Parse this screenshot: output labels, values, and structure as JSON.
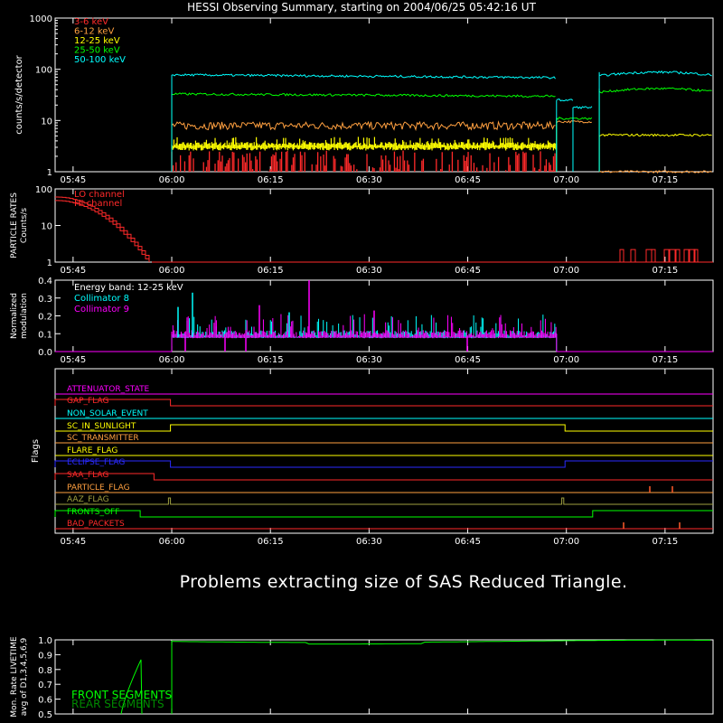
{
  "title": "HESSI Observing Summary, starting on 2004/06/25 05:42:16 UT",
  "message": "Problems extracting size of SAS Reduced Triangle.",
  "time_ticks": [
    "05:45",
    "06:00",
    "06:15",
    "06:30",
    "06:45",
    "07:00",
    "07:15"
  ],
  "time_tick_minutes": [
    345,
    360,
    375,
    390,
    405,
    420,
    435
  ],
  "time_range_minutes": [
    342.27,
    442.3
  ],
  "chart_data": [
    {
      "type": "line",
      "ylabel": "counts/s/detector",
      "yscale": "log",
      "ylim": [
        1,
        1000
      ],
      "yticks": [
        "1",
        "10",
        "100",
        "1000"
      ],
      "series": [
        {
          "name": "3-6 keV",
          "color": "#ff2a2a",
          "segments": [
            {
              "from": 360,
              "to": 418.5,
              "level": 1.7,
              "spiky": true
            }
          ]
        },
        {
          "name": "6-12 keV",
          "color": "#ffa040",
          "segments": [
            {
              "from": 360,
              "to": 418.5,
              "level": 8,
              "spiky": true
            },
            {
              "from": 418.5,
              "to": 424,
              "level": 9.5,
              "spiky": false
            },
            {
              "from": 425,
              "to": 442.3,
              "level": 1,
              "spiky": false
            }
          ]
        },
        {
          "name": "12-25 keV",
          "color": "#ffff00",
          "segments": [
            {
              "from": 360,
              "to": 418.5,
              "level": 3.2,
              "spiky": true
            },
            {
              "from": 425,
              "to": 442.3,
              "level": 5.2,
              "spiky": false
            }
          ]
        },
        {
          "name": "25-50 keV",
          "color": "#00ff00",
          "segments": [
            {
              "from": 360,
              "to": 418.5,
              "level": 33,
              "spiky": false
            },
            {
              "from": 418.5,
              "to": 424,
              "level": 11,
              "spiky": false
            },
            {
              "from": 425,
              "to": 442.3,
              "level": 42,
              "spiky": false
            }
          ]
        },
        {
          "name": "50-100 keV",
          "color": "#00ffff",
          "segments": [
            {
              "from": 360,
              "to": 418.5,
              "level": 78,
              "spiky": false
            },
            {
              "from": 418.5,
              "to": 421,
              "level": 25,
              "spiky": false
            },
            {
              "from": 421,
              "to": 424,
              "level": 18,
              "spiky": false
            },
            {
              "from": 425,
              "to": 442.3,
              "level": 88,
              "spiky": false
            }
          ]
        }
      ]
    },
    {
      "type": "line",
      "ylabel": "PARTICLE RATES Counts/s",
      "yscale": "log",
      "ylim": [
        1,
        100
      ],
      "yticks": [
        "1",
        "10",
        "100"
      ],
      "series": [
        {
          "name": "LO channel",
          "color": "#ff2a2a"
        },
        {
          "name": "HI channel",
          "color": "#ff2a2a"
        }
      ]
    },
    {
      "type": "line",
      "ylabel": "Normalized modulation",
      "ylim": [
        0,
        0.4
      ],
      "yticks": [
        "0.0",
        "0.1",
        "0.2",
        "0.3",
        "0.4"
      ],
      "annotation": "Energy band: 12-25 keV",
      "series": [
        {
          "name": "Collimator 8",
          "color": "#00ffff"
        },
        {
          "name": "Collimator 9",
          "color": "#ff00ff"
        }
      ]
    },
    {
      "type": "line",
      "ylabel": "Flags",
      "flags": [
        {
          "name": "ATTENUATOR_STATE",
          "color": "#ff00ff"
        },
        {
          "name": "GAP_FLAG",
          "color": "#ff2a2a"
        },
        {
          "name": "NON_SOLAR_EVENT",
          "color": "#00ffff"
        },
        {
          "name": "SC_IN_SUNLIGHT",
          "color": "#ffff00"
        },
        {
          "name": "SC_TRANSMITTER",
          "color": "#ffa040"
        },
        {
          "name": "FLARE_FLAG",
          "color": "#ffff00"
        },
        {
          "name": "ECLIPSE_FLAG",
          "color": "#2a2aff"
        },
        {
          "name": "SAA_FLAG",
          "color": "#ff2a2a"
        },
        {
          "name": "PARTICLE_FLAG",
          "color": "#ffa040"
        },
        {
          "name": "AAZ_FLAG",
          "color": "#a0a040"
        },
        {
          "name": "FRONTS_OFF",
          "color": "#00ff00"
        },
        {
          "name": "BAD_PACKETS",
          "color": "#ff2a2a"
        }
      ]
    },
    {
      "type": "line",
      "ylabel": "Mon. Rate LIVETIME avg of D1,3,4,5,6,9",
      "ylim": [
        0.5,
        1.0
      ],
      "yticks": [
        "0.5",
        "0.6",
        "0.7",
        "0.8",
        "0.9",
        "1.0"
      ],
      "series": [
        {
          "name": "FRONT SEGMENTS",
          "color": "#00ff00"
        },
        {
          "name": "REAR SEGMENTS",
          "color": "#008a00"
        }
      ]
    }
  ]
}
